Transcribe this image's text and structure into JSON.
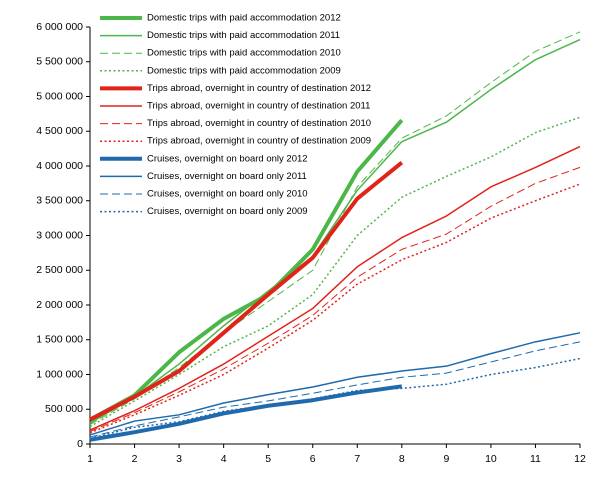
{
  "chart_data": {
    "type": "line",
    "x": [
      1,
      2,
      3,
      4,
      5,
      6,
      7,
      8,
      9,
      10,
      11,
      12
    ],
    "xlim": [
      1,
      12
    ],
    "xticks": [
      1,
      2,
      3,
      4,
      5,
      6,
      7,
      8,
      9,
      10,
      11,
      12
    ],
    "ylim": [
      0,
      6000000
    ],
    "yticks": [
      {
        "value": 0,
        "label": "0"
      },
      {
        "value": 500000,
        "label": "500 000"
      },
      {
        "value": 1000000,
        "label": "1 000 000"
      },
      {
        "value": 1500000,
        "label": "1 500 000"
      },
      {
        "value": 2000000,
        "label": "2 000 000"
      },
      {
        "value": 2500000,
        "label": "2 500 000"
      },
      {
        "value": 3000000,
        "label": "3 000 000"
      },
      {
        "value": 3500000,
        "label": "3 500 000"
      },
      {
        "value": 4000000,
        "label": "4 000 000"
      },
      {
        "value": 4500000,
        "label": "4 500 000"
      },
      {
        "value": 5000000,
        "label": "5 000 000"
      },
      {
        "value": 5500000,
        "label": "5 500 000"
      },
      {
        "value": 6000000,
        "label": "6 000 000"
      }
    ],
    "grid": false,
    "legend": "upper left",
    "series": [
      {
        "name": "Domestic trips with paid accommodation 2012",
        "color": "#4cb748",
        "line_width": 4,
        "dash": "solid",
        "values": [
          350000,
          700000,
          1320000,
          1800000,
          2150000,
          2800000,
          3920000,
          4660000,
          null,
          null,
          null,
          null
        ]
      },
      {
        "name": "Domestic trips with paid accommodation 2011",
        "color": "#4cb748",
        "line_width": 1.5,
        "dash": "solid",
        "values": [
          300000,
          680000,
          1150000,
          1700000,
          2200000,
          2700000,
          3650000,
          4350000,
          4630000,
          5100000,
          5530000,
          5820000
        ]
      },
      {
        "name": "Domestic trips with paid accommodation 2010",
        "color": "#4cb748",
        "line_width": 1,
        "dash": "dashed",
        "values": [
          280000,
          650000,
          1100000,
          1600000,
          2050000,
          2500000,
          3700000,
          4400000,
          4720000,
          5200000,
          5650000,
          5930000
        ]
      },
      {
        "name": "Domestic trips with paid accommodation 2009",
        "color": "#4cb748",
        "line_width": 1.5,
        "dash": "dotted",
        "values": [
          250000,
          620000,
          1000000,
          1400000,
          1700000,
          2150000,
          3000000,
          3550000,
          3850000,
          4130000,
          4480000,
          4700000
        ]
      },
      {
        "name": "Trips abroad,  overnight in country of destination 2012",
        "color": "#e2231a",
        "line_width": 4,
        "dash": "solid",
        "values": [
          350000,
          680000,
          1050000,
          1600000,
          2150000,
          2680000,
          3530000,
          4050000,
          null,
          null,
          null,
          null
        ]
      },
      {
        "name": "Trips abroad,  overnight in country of destination 2011",
        "color": "#e2231a",
        "line_width": 1.5,
        "dash": "solid",
        "values": [
          200000,
          480000,
          800000,
          1150000,
          1550000,
          1950000,
          2550000,
          2970000,
          3280000,
          3700000,
          3980000,
          4280000
        ]
      },
      {
        "name": "Trips abroad,  overnight in country of destination 2010",
        "color": "#e2231a",
        "line_width": 1,
        "dash": "dashed",
        "values": [
          180000,
          450000,
          750000,
          1080000,
          1450000,
          1850000,
          2400000,
          2800000,
          3020000,
          3420000,
          3750000,
          3980000
        ]
      },
      {
        "name": "Trips abroad,  overnight in country of destination 2009",
        "color": "#e2231a",
        "line_width": 1.5,
        "dash": "dotted",
        "values": [
          160000,
          420000,
          700000,
          1000000,
          1380000,
          1780000,
          2300000,
          2650000,
          2900000,
          3250000,
          3500000,
          3740000
        ]
      },
      {
        "name": "Cruises, overnight on board only 2012",
        "color": "#1f6aad",
        "line_width": 4,
        "dash": "solid",
        "values": [
          60000,
          170000,
          290000,
          440000,
          550000,
          630000,
          740000,
          830000,
          null,
          null,
          null,
          null
        ]
      },
      {
        "name": "Cruises, overnight on board only 2011",
        "color": "#1f6aad",
        "line_width": 1.5,
        "dash": "solid",
        "values": [
          130000,
          330000,
          420000,
          590000,
          710000,
          820000,
          960000,
          1050000,
          1120000,
          1300000,
          1470000,
          1600000
        ]
      },
      {
        "name": "Cruises, overnight on board only 2010",
        "color": "#1f6aad",
        "line_width": 1,
        "dash": "dashed",
        "values": [
          100000,
          260000,
          390000,
          530000,
          620000,
          730000,
          850000,
          960000,
          1020000,
          1180000,
          1340000,
          1470000
        ]
      },
      {
        "name": "Cruises, overnight on board only 2009",
        "color": "#1f6aad",
        "line_width": 1.5,
        "dash": "dotted",
        "values": [
          80000,
          240000,
          320000,
          470000,
          560000,
          650000,
          770000,
          800000,
          860000,
          1000000,
          1100000,
          1230000
        ]
      }
    ]
  }
}
